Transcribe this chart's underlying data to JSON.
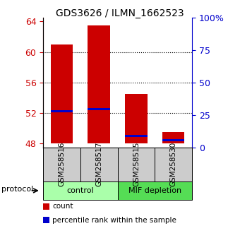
{
  "title": "GDS3626 / ILMN_1662523",
  "samples": [
    "GSM258516",
    "GSM258517",
    "GSM258515",
    "GSM258530"
  ],
  "bar_bottoms": [
    48,
    48,
    48,
    48
  ],
  "bar_tops": [
    61.0,
    63.5,
    54.5,
    49.5
  ],
  "blue_marks": [
    52.2,
    52.5,
    49.0,
    48.5
  ],
  "groups": [
    {
      "label": "control",
      "n_samples": 2,
      "color": "#aaffaa"
    },
    {
      "label": "MIF depletion",
      "n_samples": 2,
      "color": "#55dd55"
    }
  ],
  "ylim_left": [
    47.5,
    64.5
  ],
  "yticks_left": [
    48,
    52,
    56,
    60,
    64
  ],
  "ylim_right": [
    0,
    100
  ],
  "yticks_right": [
    0,
    25,
    50,
    75,
    100
  ],
  "ytick_labels_right": [
    "0",
    "25",
    "50",
    "75",
    "100%"
  ],
  "bar_color": "#cc0000",
  "blue_color": "#0000cc",
  "bar_width": 0.6,
  "left_axis_color": "#cc0000",
  "right_axis_color": "#0000cc",
  "grid_yticks": [
    52,
    56,
    60
  ],
  "sample_box_color": "#cccccc",
  "legend_items": [
    {
      "color": "#cc0000",
      "label": "count"
    },
    {
      "color": "#0000cc",
      "label": "percentile rank within the sample"
    }
  ],
  "protocol_label": "protocol"
}
